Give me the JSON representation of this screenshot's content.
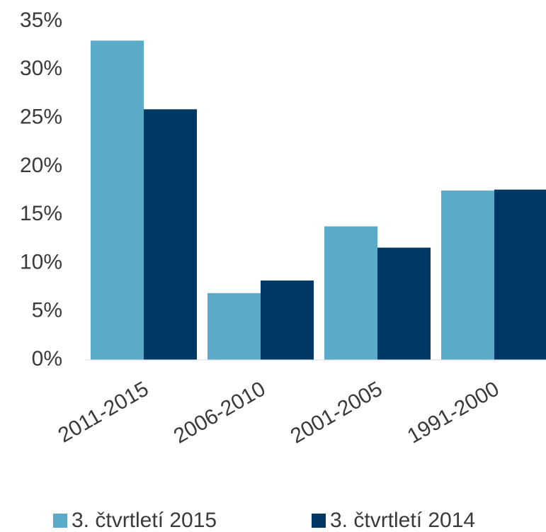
{
  "chart_data": {
    "type": "bar",
    "categories": [
      "2011-2015",
      "2006-2010",
      "2001-2005",
      "1991-2000"
    ],
    "series": [
      {
        "name": "3. čtvrtletí 2015",
        "color": "#5aabc8",
        "values": [
          33,
          6.9,
          13.8,
          17.5
        ]
      },
      {
        "name": "3. čtvrtletí 2014",
        "color": "#003865",
        "values": [
          25.9,
          8.2,
          11.6,
          17.6
        ]
      }
    ],
    "ylim": [
      0,
      35
    ],
    "yticks": [
      {
        "value": 0,
        "label": "0%"
      },
      {
        "value": 5,
        "label": "5%"
      },
      {
        "value": 10,
        "label": "10%"
      },
      {
        "value": 15,
        "label": "15%"
      },
      {
        "value": 20,
        "label": "20%"
      },
      {
        "value": 25,
        "label": "25%"
      },
      {
        "value": 30,
        "label": "30%"
      },
      {
        "value": 35,
        "label": "35%"
      }
    ],
    "grid": false,
    "legend": "bottom"
  }
}
